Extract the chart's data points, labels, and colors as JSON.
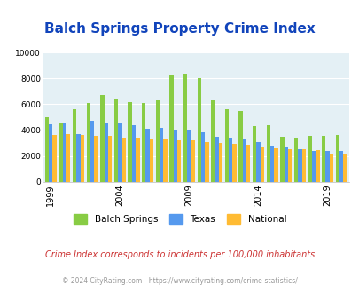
{
  "title": "Balch Springs Property Crime Index",
  "years": [
    1999,
    2000,
    2001,
    2002,
    2003,
    2004,
    2005,
    2006,
    2007,
    2008,
    2009,
    2010,
    2011,
    2012,
    2013,
    2014,
    2015,
    2016,
    2017,
    2018,
    2019,
    2020
  ],
  "balch_springs": [
    5000,
    4500,
    5600,
    6100,
    6700,
    6400,
    6200,
    6100,
    6300,
    8300,
    8400,
    8000,
    6300,
    5600,
    5500,
    4300,
    4350,
    3500,
    3400,
    3550,
    3550,
    3600
  ],
  "texas": [
    4450,
    4600,
    3700,
    4700,
    4600,
    4550,
    4350,
    4100,
    4200,
    4050,
    4050,
    3850,
    3500,
    3400,
    3300,
    3050,
    2800,
    2750,
    2500,
    2400,
    2350,
    2350
  ],
  "national": [
    3600,
    3700,
    3600,
    3550,
    3550,
    3450,
    3450,
    3350,
    3300,
    3200,
    3200,
    3050,
    3000,
    2950,
    2850,
    2700,
    2600,
    2550,
    2500,
    2450,
    2200,
    2100
  ],
  "balch_color": "#88cc44",
  "texas_color": "#5599ee",
  "national_color": "#ffbb33",
  "bg_color": "#e4f0f5",
  "title_color": "#1144bb",
  "subtitle": "Crime Index corresponds to incidents per 100,000 inhabitants",
  "subtitle_color": "#cc3333",
  "footer": "© 2024 CityRating.com - https://www.cityrating.com/crime-statistics/",
  "footer_color": "#999999",
  "ylim": [
    0,
    10000
  ],
  "yticks": [
    0,
    2000,
    4000,
    6000,
    8000,
    10000
  ],
  "xtick_years": [
    1999,
    2004,
    2009,
    2014,
    2019
  ]
}
